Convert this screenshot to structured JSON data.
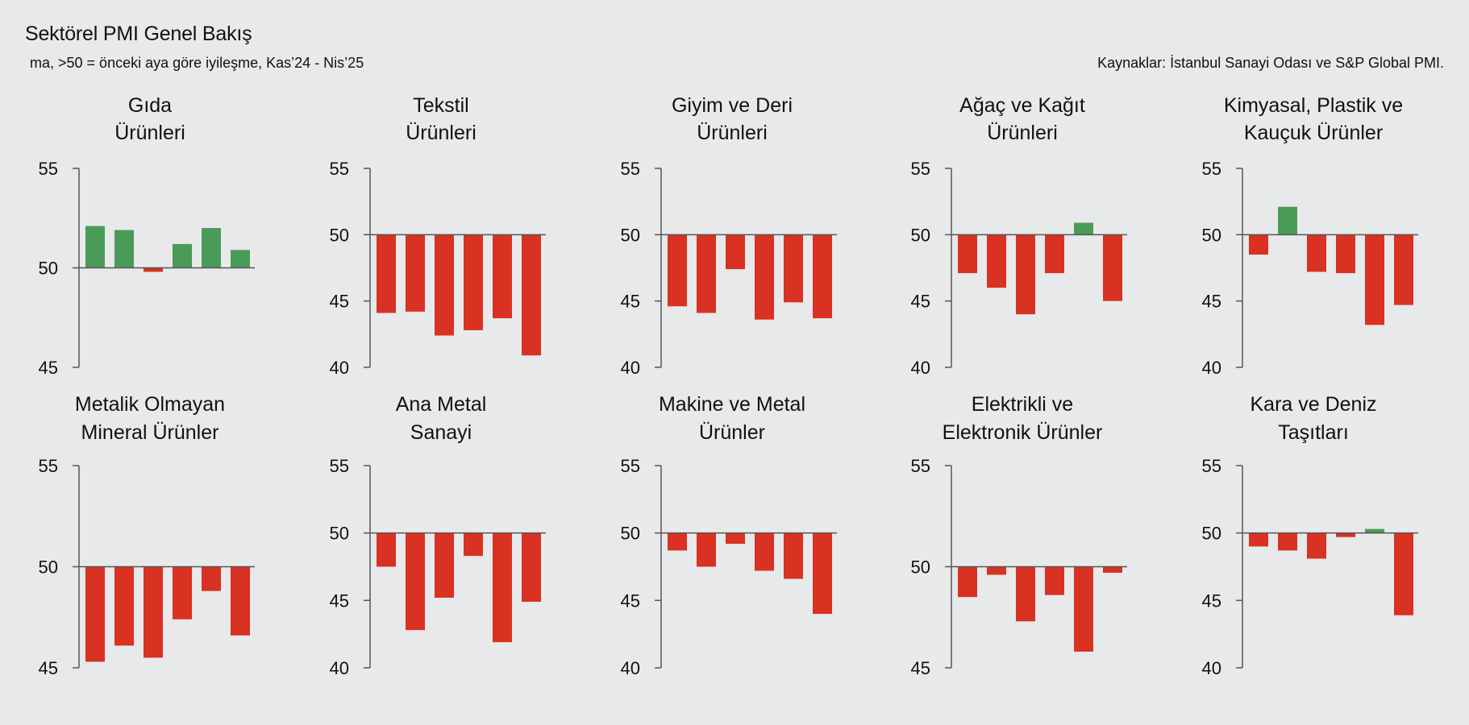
{
  "header": {
    "title": "Sektörel PMI Genel Bakış",
    "subtitle": "ma, >50 = önceki aya göre iyileşme, Kas’24 - Nis’25",
    "source": "Kaynaklar: İstanbul Sanayi Odası ve S&P Global PMI."
  },
  "colors": {
    "positive": "#4a9b57",
    "negative": "#d93122",
    "axis": "#555555",
    "background": "#e8e9ea"
  },
  "chart_data": [
    {
      "type": "bar",
      "title_lines": [
        "Gıda",
        "Ürünleri"
      ],
      "baseline": 50,
      "ylim": [
        45,
        55
      ],
      "yticks": [
        45,
        50,
        55
      ],
      "values": [
        52.1,
        51.9,
        49.8,
        51.2,
        52.0,
        50.9
      ]
    },
    {
      "type": "bar",
      "title_lines": [
        "Tekstil",
        "Ürünleri"
      ],
      "baseline": 50,
      "ylim": [
        40,
        55
      ],
      "yticks": [
        40,
        45,
        50,
        55
      ],
      "values": [
        44.1,
        44.2,
        42.4,
        42.8,
        43.7,
        40.9
      ]
    },
    {
      "type": "bar",
      "title_lines": [
        "Giyim ve Deri",
        "Ürünleri"
      ],
      "baseline": 50,
      "ylim": [
        40,
        55
      ],
      "yticks": [
        40,
        45,
        50,
        55
      ],
      "values": [
        44.6,
        44.1,
        47.4,
        43.6,
        44.9,
        43.7
      ]
    },
    {
      "type": "bar",
      "title_lines": [
        "Ağaç ve Kağıt",
        "Ürünleri"
      ],
      "baseline": 50,
      "ylim": [
        40,
        55
      ],
      "yticks": [
        40,
        45,
        50,
        55
      ],
      "values": [
        47.1,
        46.0,
        44.0,
        47.1,
        50.9,
        45.0
      ]
    },
    {
      "type": "bar",
      "title_lines": [
        "Kimyasal, Plastik ve",
        "Kauçuk Ürünler"
      ],
      "baseline": 50,
      "ylim": [
        40,
        55
      ],
      "yticks": [
        40,
        45,
        50,
        55
      ],
      "values": [
        48.5,
        52.1,
        47.2,
        47.1,
        43.2,
        44.7
      ]
    },
    {
      "type": "bar",
      "title_lines": [
        "Metalik Olmayan",
        "Mineral Ürünler"
      ],
      "baseline": 50,
      "ylim": [
        45,
        55
      ],
      "yticks": [
        45,
        50,
        55
      ],
      "values": [
        45.3,
        46.1,
        45.5,
        47.4,
        48.8,
        46.6
      ]
    },
    {
      "type": "bar",
      "title_lines": [
        "Ana Metal",
        "Sanayi"
      ],
      "baseline": 50,
      "ylim": [
        40,
        55
      ],
      "yticks": [
        40,
        45,
        50,
        55
      ],
      "values": [
        47.5,
        42.8,
        45.2,
        48.3,
        41.9,
        44.9
      ]
    },
    {
      "type": "bar",
      "title_lines": [
        "Makine ve Metal",
        "Ürünler"
      ],
      "baseline": 50,
      "ylim": [
        40,
        55
      ],
      "yticks": [
        40,
        45,
        50,
        55
      ],
      "values": [
        48.7,
        47.5,
        49.2,
        47.2,
        46.6,
        44.0
      ]
    },
    {
      "type": "bar",
      "title_lines": [
        "Elektrikli ve",
        "Elektronik Ürünler"
      ],
      "baseline": 50,
      "ylim": [
        45,
        55
      ],
      "yticks": [
        45,
        50,
        55
      ],
      "values": [
        48.5,
        49.6,
        47.3,
        48.6,
        45.8,
        49.7
      ]
    },
    {
      "type": "bar",
      "title_lines": [
        "Kara ve Deniz",
        "Taşıtları"
      ],
      "baseline": 50,
      "ylim": [
        40,
        55
      ],
      "yticks": [
        40,
        45,
        50,
        55
      ],
      "values": [
        49.0,
        48.7,
        48.1,
        49.7,
        50.3,
        43.9
      ]
    }
  ]
}
